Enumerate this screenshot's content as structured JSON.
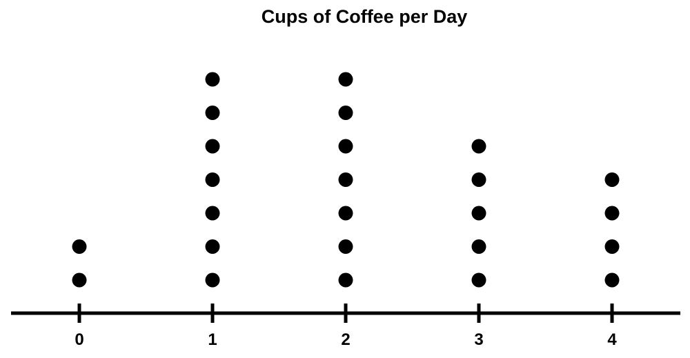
{
  "chart_data": {
    "type": "scatter",
    "subtype": "dot-plot",
    "title": "Cups of Coffee per Day",
    "xlabel": "",
    "ylabel": "",
    "categories": [
      "0",
      "1",
      "2",
      "3",
      "4"
    ],
    "x": [
      0,
      1,
      2,
      3,
      4
    ],
    "values": [
      2,
      7,
      7,
      5,
      4
    ],
    "grid": false,
    "legend": "none",
    "colors": {
      "dot": "#000000",
      "axis": "#000000",
      "background": "#ffffff"
    }
  }
}
